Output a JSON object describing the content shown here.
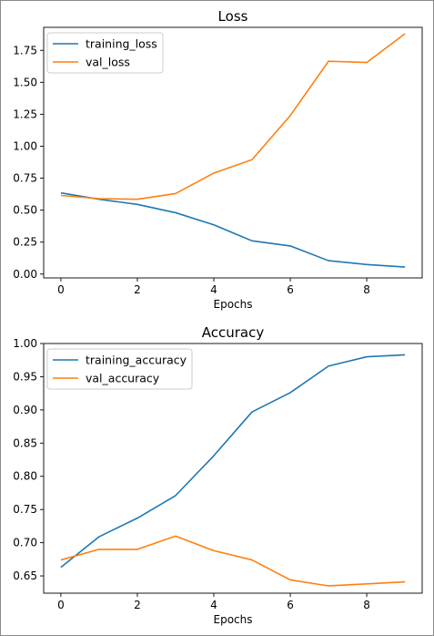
{
  "chart_data": [
    {
      "type": "line",
      "title": "Loss",
      "xlabel": "Epochs",
      "ylabel": "",
      "x": [
        0,
        1,
        2,
        3,
        4,
        5,
        6,
        7,
        8,
        9
      ],
      "xlim": [
        -0.45,
        9.45
      ],
      "ylim": [
        -0.03,
        1.93
      ],
      "xticks": [
        0,
        2,
        4,
        6,
        8
      ],
      "yticks": [
        0.0,
        0.25,
        0.5,
        0.75,
        1.0,
        1.25,
        1.5,
        1.75
      ],
      "ytick_labels": [
        "0.00",
        "0.25",
        "0.50",
        "0.75",
        "1.00",
        "1.25",
        "1.50",
        "1.75"
      ],
      "grid": false,
      "legend": "top-left",
      "series": [
        {
          "name": "training_loss",
          "color": "#1f77b4",
          "values": [
            0.635,
            0.585,
            0.545,
            0.48,
            0.385,
            0.26,
            0.22,
            0.105,
            0.075,
            0.055
          ]
        },
        {
          "name": "val_loss",
          "color": "#ff7f0e",
          "values": [
            0.615,
            0.59,
            0.585,
            0.63,
            0.79,
            0.895,
            1.24,
            1.665,
            1.655,
            1.88
          ]
        }
      ]
    },
    {
      "type": "line",
      "title": "Accuracy",
      "xlabel": "Epochs",
      "ylabel": "",
      "x": [
        0,
        1,
        2,
        3,
        4,
        5,
        6,
        7,
        8,
        9
      ],
      "xlim": [
        -0.45,
        9.45
      ],
      "ylim": [
        0.624,
        1.0
      ],
      "xticks": [
        0,
        2,
        4,
        6,
        8
      ],
      "yticks": [
        0.65,
        0.7,
        0.75,
        0.8,
        0.85,
        0.9,
        0.95,
        1.0
      ],
      "ytick_labels": [
        "0.65",
        "0.70",
        "0.75",
        "0.80",
        "0.85",
        "0.90",
        "0.95",
        "1.00"
      ],
      "grid": false,
      "legend": "top-left",
      "series": [
        {
          "name": "training_accuracy",
          "color": "#1f77b4",
          "values": [
            0.663,
            0.709,
            0.737,
            0.771,
            0.831,
            0.897,
            0.926,
            0.966,
            0.98,
            0.983
          ]
        },
        {
          "name": "val_accuracy",
          "color": "#ff7f0e",
          "values": [
            0.674,
            0.69,
            0.69,
            0.71,
            0.688,
            0.674,
            0.644,
            0.635,
            0.638,
            0.641
          ]
        }
      ]
    }
  ]
}
